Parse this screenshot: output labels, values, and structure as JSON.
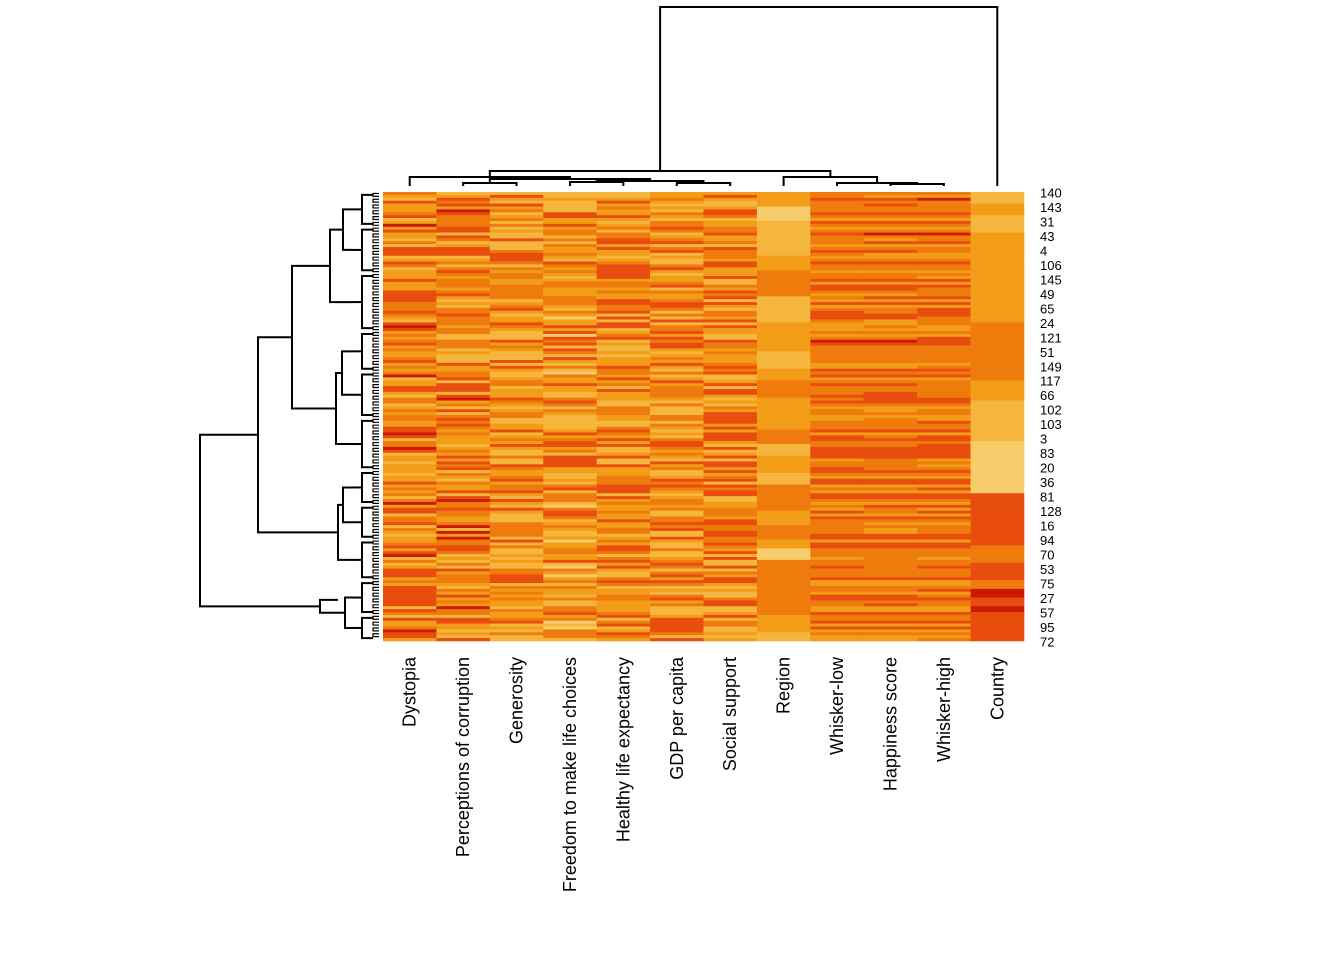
{
  "chart_data": {
    "type": "heatmap",
    "title": "",
    "xlabel": "",
    "ylabel": "",
    "columns": [
      "Dystopia",
      "Perceptions of corruption",
      "Generosity",
      "Freedom to make life choices",
      "Healthy life expectancy",
      "GDP per capita",
      "Social support",
      "Region",
      "Whisker-low",
      "Happiness score",
      "Whisker-high",
      "Country"
    ],
    "row_count": 155,
    "row_labels_shown": [
      "140",
      "143",
      "31",
      "43",
      "4",
      "106",
      "145",
      "49",
      "65",
      "24",
      "121",
      "51",
      "149",
      "117",
      "66",
      "102",
      "103",
      "3",
      "83",
      "20",
      "36",
      "81",
      "128",
      "16",
      "94",
      "70",
      "53",
      "75",
      "27",
      "57",
      "95",
      "72"
    ],
    "color_scale": [
      "#8b0000",
      "#cc1a00",
      "#e84d0e",
      "#ee7b0c",
      "#f39c18",
      "#f6b63e",
      "#f8cc6a",
      "#fce6a0",
      "#fff7c8"
    ],
    "column_dendrogram": true,
    "row_dendrogram": true
  },
  "colors": {
    "background": "#ffffff",
    "line": "#000000"
  }
}
